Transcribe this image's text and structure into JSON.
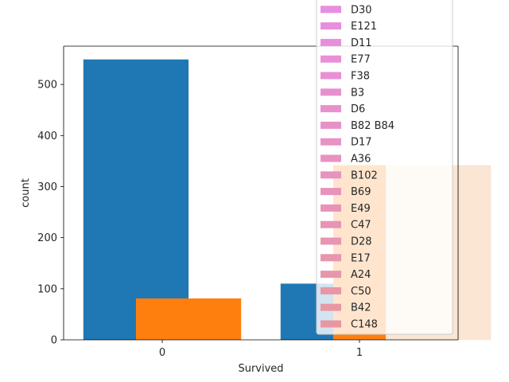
{
  "chart_data": {
    "type": "bar",
    "xlabel": "Survived",
    "ylabel": "count",
    "categories": [
      "0",
      "1"
    ],
    "ylim": [
      0,
      575
    ],
    "yticks": [
      0,
      100,
      200,
      300,
      400,
      500
    ],
    "grid": false,
    "legend_position": "upper-right, extends beyond top edge",
    "series": [
      {
        "color": "#1f77b4",
        "values": [
          549,
          110
        ]
      },
      {
        "color": "#ff7f0e",
        "values": [
          81,
          342
        ]
      },
      {
        "color": "#fbe5d3",
        "values": [
          null,
          342
        ]
      }
    ],
    "legend": {
      "entries": [
        {
          "label": "D30",
          "color": "#e78ee0"
        },
        {
          "label": "E121",
          "color": "#e78edd"
        },
        {
          "label": "D11",
          "color": "#e78fda"
        },
        {
          "label": "E77",
          "color": "#e890d6"
        },
        {
          "label": "F38",
          "color": "#e890d3"
        },
        {
          "label": "B3",
          "color": "#e890cf"
        },
        {
          "label": "D6",
          "color": "#e891cc"
        },
        {
          "label": "B82 B84",
          "color": "#e891c8"
        },
        {
          "label": "D17",
          "color": "#e892c5"
        },
        {
          "label": "A36",
          "color": "#e892c2"
        },
        {
          "label": "B102",
          "color": "#e893bf"
        },
        {
          "label": "B69",
          "color": "#e893bb"
        },
        {
          "label": "E49",
          "color": "#e894b8"
        },
        {
          "label": "C47",
          "color": "#e894b5"
        },
        {
          "label": "D28",
          "color": "#e895b2"
        },
        {
          "label": "E17",
          "color": "#e895ae"
        },
        {
          "label": "A24",
          "color": "#e896ab"
        },
        {
          "label": "C50",
          "color": "#e896a8"
        },
        {
          "label": "B42",
          "color": "#e897a5"
        },
        {
          "label": "C148",
          "color": "#e897a2"
        }
      ]
    }
  }
}
